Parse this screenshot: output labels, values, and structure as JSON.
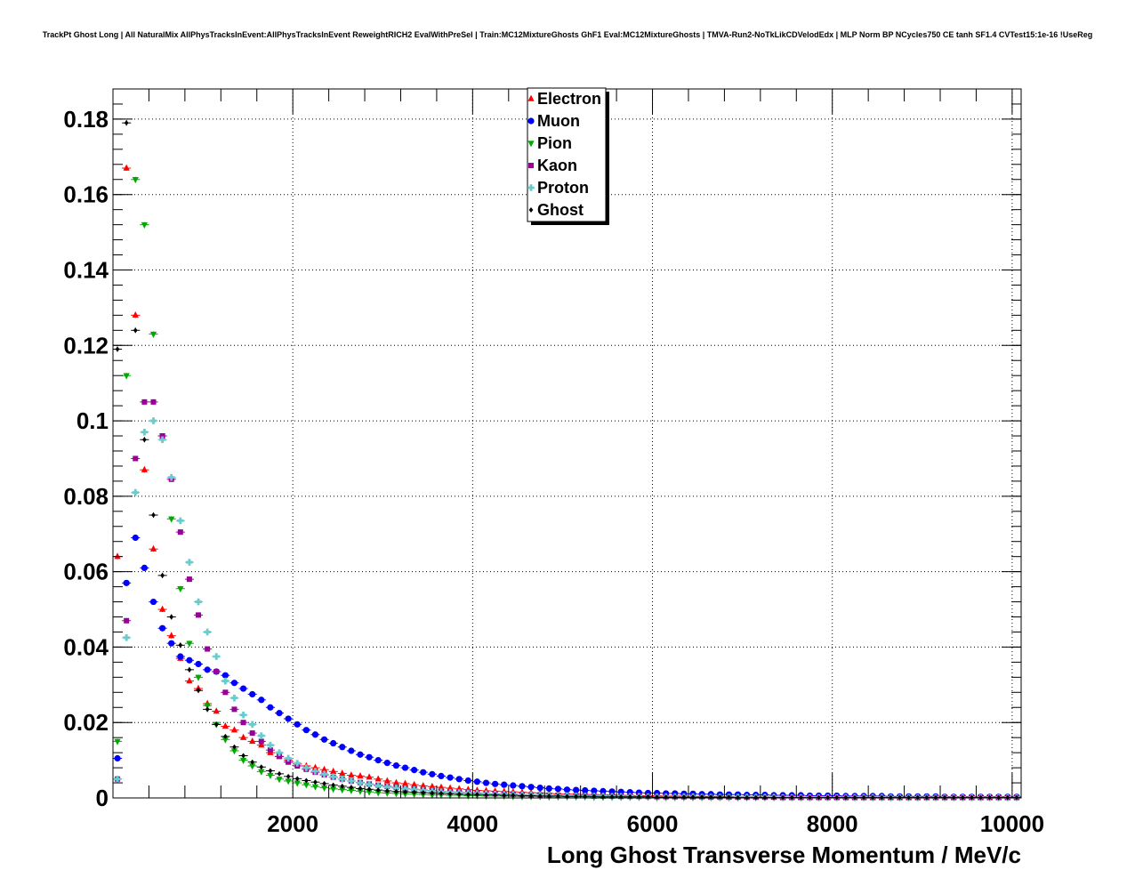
{
  "chart_data": {
    "type": "scatter",
    "title": "TrackPt Ghost Long | All NaturalMix AllPhysTracksInEvent:AllPhysTracksInEvent ReweightRICH2 EvalWithPreSel | Train:MC12MixtureGhosts GhF1 Eval:MC12MixtureGhosts | TMVA-Run2-NoTkLikCDVelodEdx | MLP Norm BP NCycles750 CE tanh SF1.4 CVTest15:1e-16 !UseReg",
    "xlabel": "Long Ghost Transverse Momentum / MeV/c",
    "ylabel": "",
    "xlim": [
      0,
      10100
    ],
    "ylim": [
      0,
      0.188
    ],
    "x_ticks": [
      "2000",
      "4000",
      "6000",
      "8000",
      "10000"
    ],
    "y_ticks": [
      "0",
      "0.02",
      "0.04",
      "0.06",
      "0.08",
      "0.1",
      "0.12",
      "0.14",
      "0.16",
      "0.18"
    ],
    "grid": true,
    "legend_position": "top-center",
    "bin_width": 100,
    "x": [
      50,
      150,
      250,
      350,
      450,
      550,
      650,
      750,
      850,
      950,
      1050,
      1150,
      1250,
      1350,
      1450,
      1550,
      1650,
      1750,
      1850,
      1950,
      2050,
      2150,
      2250,
      2350,
      2450,
      2550,
      2650,
      2750,
      2850,
      2950,
      3050,
      3150,
      3250,
      3350,
      3450,
      3550,
      3650,
      3750,
      3850,
      3950,
      4050,
      4150,
      4250,
      4350,
      4450,
      4550,
      4650,
      4750,
      4850,
      4950,
      5050,
      5150,
      5250,
      5350,
      5450,
      5550,
      5650,
      5750,
      5850,
      5950,
      6050,
      6150,
      6250,
      6350,
      6450,
      6550,
      6650,
      6750,
      6850,
      6950,
      7050,
      7150,
      7250,
      7350,
      7450,
      7550,
      7650,
      7750,
      7850,
      7950,
      8050,
      8150,
      8250,
      8350,
      8450,
      8550,
      8650,
      8750,
      8850,
      8950,
      9050,
      9150,
      9250,
      9350,
      9450,
      9550,
      9650,
      9750,
      9850,
      9950,
      10050
    ],
    "series": [
      {
        "name": "Electron",
        "color": "#ff0000",
        "marker": "triangle-up",
        "values": [
          0.064,
          0.167,
          0.128,
          0.087,
          0.066,
          0.05,
          0.043,
          0.037,
          0.031,
          0.029,
          0.025,
          0.023,
          0.019,
          0.018,
          0.016,
          0.015,
          0.014,
          0.012,
          0.011,
          0.01,
          0.009,
          0.0085,
          0.008,
          0.0075,
          0.007,
          0.0065,
          0.006,
          0.0058,
          0.0055,
          0.005,
          0.0045,
          0.004,
          0.0038,
          0.0035,
          0.0032,
          0.003,
          0.0028,
          0.0026,
          0.0024,
          0.0022,
          0.002,
          0.0019,
          0.0018,
          0.0017,
          0.0016,
          0.0015,
          0.0014,
          0.0013,
          0.0012,
          0.0011,
          0.001,
          0.001,
          0.0009,
          0.0009,
          0.0008,
          0.0008,
          0.0007,
          0.0007,
          0.0006,
          0.0006,
          0.0006,
          0.0005,
          0.0005,
          0.0005,
          0.0004,
          0.0004,
          0.0004,
          0.0004,
          0.0003,
          0.0003,
          0.0003,
          0.0003,
          0.0003,
          0.0002,
          0.0002,
          0.0002,
          0.0002,
          0.0002,
          0.0002,
          0.0002,
          0.0002,
          0.0002,
          0.0001,
          0.0001,
          0.0001,
          0.0001,
          0.0001,
          0.0001,
          0.0001,
          0.0001,
          0.0001,
          0.0001,
          0.0001,
          0.0001,
          0.0001,
          0.0001,
          0.0001,
          0.0001,
          0.0001,
          0.0001,
          0.0001
        ]
      },
      {
        "name": "Muon",
        "color": "#0000ff",
        "marker": "circle",
        "values": [
          0.0105,
          0.057,
          0.069,
          0.061,
          0.052,
          0.045,
          0.041,
          0.0375,
          0.0365,
          0.0355,
          0.034,
          0.0335,
          0.0325,
          0.0305,
          0.029,
          0.0275,
          0.026,
          0.024,
          0.0225,
          0.021,
          0.0195,
          0.018,
          0.0168,
          0.0155,
          0.0145,
          0.0135,
          0.0125,
          0.0115,
          0.0108,
          0.01,
          0.0093,
          0.0086,
          0.008,
          0.0074,
          0.0068,
          0.0063,
          0.0058,
          0.0054,
          0.005,
          0.0046,
          0.0043,
          0.004,
          0.0037,
          0.0035,
          0.0033,
          0.0031,
          0.0029,
          0.0027,
          0.0025,
          0.0024,
          0.0022,
          0.0021,
          0.002,
          0.0019,
          0.0018,
          0.0017,
          0.0016,
          0.0015,
          0.0014,
          0.0013,
          0.0013,
          0.0012,
          0.0012,
          0.0011,
          0.0011,
          0.001,
          0.001,
          0.0009,
          0.0009,
          0.0009,
          0.0008,
          0.0008,
          0.0008,
          0.0007,
          0.0007,
          0.0007,
          0.0007,
          0.0006,
          0.0006,
          0.0006,
          0.0006,
          0.0005,
          0.0005,
          0.0005,
          0.0005,
          0.0005,
          0.0004,
          0.0004,
          0.0004,
          0.0004,
          0.0004,
          0.0004,
          0.0003,
          0.0003,
          0.0003,
          0.0003,
          0.0003,
          0.0003,
          0.0003,
          0.0003,
          0.0003
        ]
      },
      {
        "name": "Pion",
        "color": "#00aa00",
        "marker": "triangle-down",
        "values": [
          0.015,
          0.112,
          0.164,
          0.152,
          0.123,
          0.096,
          0.074,
          0.0555,
          0.041,
          0.032,
          0.0245,
          0.0195,
          0.0155,
          0.0125,
          0.01,
          0.0085,
          0.007,
          0.006,
          0.005,
          0.0045,
          0.004,
          0.0035,
          0.003,
          0.0027,
          0.0024,
          0.0022,
          0.002,
          0.0018,
          0.0016,
          0.0014,
          0.0013,
          0.0012,
          0.0011,
          0.001,
          0.0009,
          0.0008,
          0.0008,
          0.0007,
          0.0007,
          0.0006,
          0.0006,
          0.0005,
          0.0005,
          0.0005,
          0.0004,
          0.0004,
          0.0004,
          0.0004,
          0.0003,
          0.0003,
          0.0003,
          0.0003,
          0.0003,
          0.0002,
          0.0002,
          0.0002,
          0.0002,
          0.0002,
          0.0002,
          0.0002,
          0.0001,
          0.0001,
          0.0001,
          0.0001,
          0.0001,
          0.0001,
          0.0001,
          0.0001,
          0.0001,
          0.0001,
          0.0001,
          0.0001,
          0.0001,
          0.0001,
          0.0001,
          0.0001,
          0.0001,
          0.0001,
          0.0001,
          0.0001,
          0.0001,
          0.0001,
          0.0001,
          0.0001,
          0.0001,
          0.0001,
          0.0001,
          0.0001,
          0.0001,
          0.0001,
          0.0001,
          0.0001,
          0.0001,
          0.0001,
          0.0001,
          0.0001,
          0.0001,
          0.0001,
          0.0001,
          0.0001,
          0.0001
        ]
      },
      {
        "name": "Kaon",
        "color": "#990099",
        "marker": "square",
        "values": [
          0.005,
          0.047,
          0.09,
          0.105,
          0.105,
          0.096,
          0.0845,
          0.0705,
          0.058,
          0.0485,
          0.0395,
          0.0335,
          0.028,
          0.0235,
          0.02,
          0.0172,
          0.015,
          0.0127,
          0.011,
          0.0095,
          0.0085,
          0.0076,
          0.0068,
          0.0061,
          0.0055,
          0.005,
          0.0045,
          0.0041,
          0.0037,
          0.0034,
          0.0031,
          0.0028,
          0.0025,
          0.0023,
          0.0021,
          0.0019,
          0.0017,
          0.0016,
          0.0015,
          0.0014,
          0.0013,
          0.0012,
          0.0011,
          0.001,
          0.001,
          0.0009,
          0.0008,
          0.0008,
          0.0007,
          0.0007,
          0.0006,
          0.0006,
          0.0006,
          0.0005,
          0.0005,
          0.0005,
          0.0004,
          0.0004,
          0.0004,
          0.0004,
          0.0003,
          0.0003,
          0.0003,
          0.0003,
          0.0003,
          0.0003,
          0.0002,
          0.0002,
          0.0002,
          0.0002,
          0.0002,
          0.0002,
          0.0002,
          0.0002,
          0.0001,
          0.0001,
          0.0001,
          0.0001,
          0.0001,
          0.0001,
          0.0001,
          0.0001,
          0.0001,
          0.0001,
          0.0001,
          0.0001,
          0.0001,
          0.0001,
          0.0001,
          0.0001,
          0.0001,
          0.0001,
          0.0001,
          0.0001,
          0.0001,
          0.0001,
          0.0001,
          0.0001,
          0.0001,
          0.0001,
          0.0001
        ]
      },
      {
        "name": "Proton",
        "color": "#66cccc",
        "marker": "cross",
        "values": [
          0.005,
          0.0425,
          0.081,
          0.097,
          0.1,
          0.095,
          0.085,
          0.0735,
          0.0625,
          0.052,
          0.044,
          0.0375,
          0.031,
          0.0265,
          0.022,
          0.0195,
          0.0165,
          0.014,
          0.012,
          0.0105,
          0.0092,
          0.008,
          0.0071,
          0.0063,
          0.0056,
          0.005,
          0.0045,
          0.004,
          0.0036,
          0.0032,
          0.0029,
          0.0026,
          0.0024,
          0.0022,
          0.002,
          0.0018,
          0.0016,
          0.0015,
          0.0014,
          0.0013,
          0.0012,
          0.0011,
          0.001,
          0.0009,
          0.0009,
          0.0008,
          0.0008,
          0.0007,
          0.0007,
          0.0006,
          0.0006,
          0.0005,
          0.0005,
          0.0005,
          0.0005,
          0.0004,
          0.0004,
          0.0004,
          0.0004,
          0.0003,
          0.0003,
          0.0003,
          0.0003,
          0.0003,
          0.0003,
          0.0002,
          0.0002,
          0.0002,
          0.0002,
          0.0002,
          0.0002,
          0.0002,
          0.0002,
          0.0002,
          0.0001,
          0.0001,
          0.0001,
          0.0001,
          0.0001,
          0.0001,
          0.0001,
          0.0001,
          0.0001,
          0.0001,
          0.0001,
          0.0001,
          0.0001,
          0.0001,
          0.0001,
          0.0001,
          0.0001,
          0.0001,
          0.0001,
          0.0001,
          0.0001,
          0.0001,
          0.0001,
          0.0001,
          0.0001,
          0.0001,
          0.0001
        ]
      },
      {
        "name": "Ghost",
        "color": "#000000",
        "marker": "diamond",
        "values": [
          0.119,
          0.179,
          0.124,
          0.095,
          0.075,
          0.059,
          0.048,
          0.0405,
          0.034,
          0.0285,
          0.0235,
          0.0195,
          0.0163,
          0.0135,
          0.0112,
          0.0095,
          0.0082,
          0.0072,
          0.0064,
          0.0057,
          0.0051,
          0.0046,
          0.0042,
          0.0038,
          0.0034,
          0.0031,
          0.0028,
          0.0025,
          0.0023,
          0.0021,
          0.0019,
          0.0017,
          0.0016,
          0.0015,
          0.0014,
          0.0013,
          0.0012,
          0.0011,
          0.001,
          0.0009,
          0.0009,
          0.0008,
          0.0008,
          0.0007,
          0.0007,
          0.0006,
          0.0006,
          0.0005,
          0.0005,
          0.0005,
          0.0004,
          0.0004,
          0.0004,
          0.0004,
          0.0003,
          0.0003,
          0.0003,
          0.0003,
          0.0003,
          0.0003,
          0.0002,
          0.0002,
          0.0002,
          0.0002,
          0.0002,
          0.0002,
          0.0002,
          0.0002,
          0.0002,
          0.0001,
          0.0001,
          0.0001,
          0.0001,
          0.0001,
          0.0001,
          0.0001,
          0.0001,
          0.0001,
          0.0001,
          0.0001,
          0.0001,
          0.0001,
          0.0001,
          0.0001,
          0.0001,
          0.0001,
          0.0001,
          0.0001,
          0.0001,
          0.0001,
          0.0001,
          0.0001,
          0.0001,
          0.0001,
          0.0001,
          0.0001,
          0.0001,
          0.0001,
          0.0001,
          0.0001,
          0.0001
        ]
      }
    ]
  }
}
